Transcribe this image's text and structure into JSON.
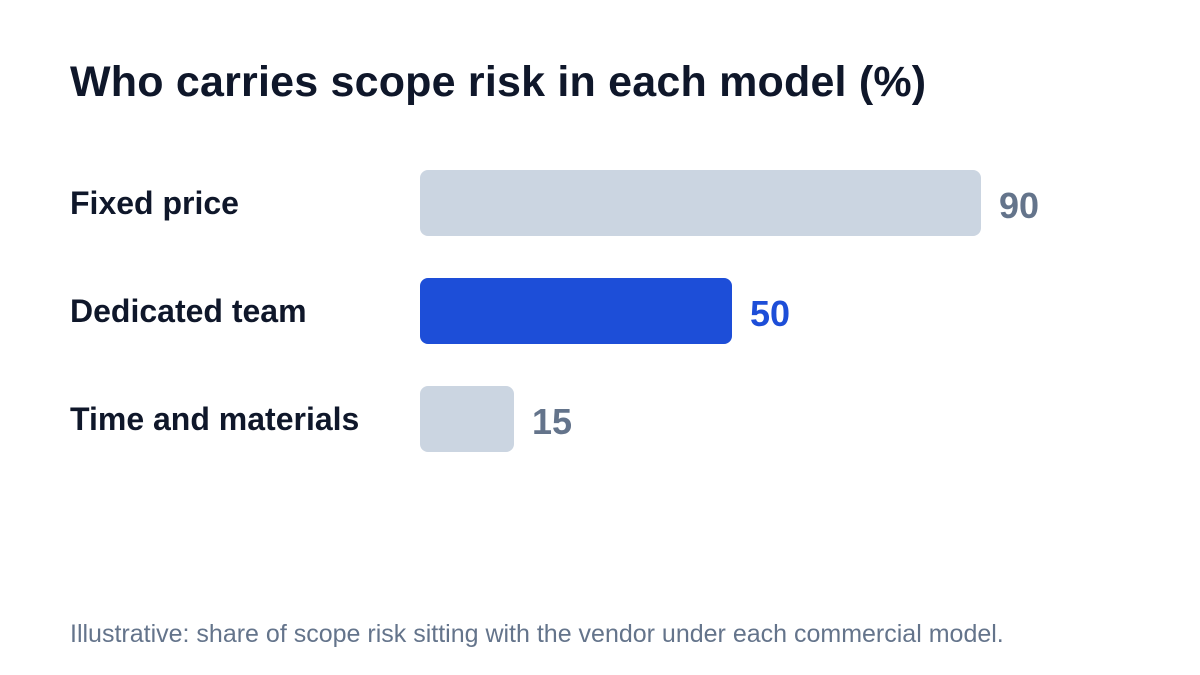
{
  "chart_data": {
    "type": "bar",
    "orientation": "horizontal",
    "title": "Who carries scope risk in each model (%)",
    "categories": [
      "Fixed price",
      "Dedicated team",
      "Time and materials"
    ],
    "values": [
      90,
      50,
      15
    ],
    "xlim": [
      0,
      90
    ],
    "highlight_index": 1,
    "grid": false,
    "footnote": "Illustrative: share of scope risk sitting with the vendor under each commercial model."
  },
  "colors": {
    "bar_default": "#cbd5e1",
    "bar_highlight": "#1d4ed8",
    "value_default": "#64748b",
    "value_highlight": "#1d4ed8",
    "title": "#0f172a",
    "footnote": "#64748b"
  }
}
